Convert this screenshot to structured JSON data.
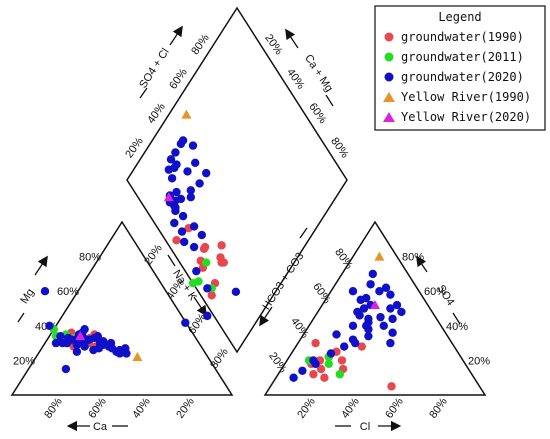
{
  "chart_data": {
    "type": "scatter",
    "title": "",
    "legend": {
      "title": "Legend",
      "placement": "top-right",
      "entries": [
        {
          "label": "groundwater(1990)",
          "marker": "circle",
          "color": "#e8474d"
        },
        {
          "label": "groundwater(2011)",
          "marker": "circle",
          "color": "#22dd22"
        },
        {
          "label": "groundwater(2020)",
          "marker": "circle",
          "color": "#1010c8"
        },
        {
          "label": "Yellow River(1990)",
          "marker": "triangle",
          "color": "#e8922a"
        },
        {
          "label": "Yellow River(2020)",
          "marker": "triangle",
          "color": "#dd22dd"
        }
      ]
    },
    "axes": {
      "cation_mg": {
        "label": "Mg",
        "ticks": [
          "20%",
          "40%",
          "60%",
          "80%"
        ]
      },
      "cation_ca": {
        "label": "Ca",
        "ticks": [
          "80%",
          "60%",
          "40%",
          "20%"
        ]
      },
      "cation_nak": {
        "label": "Na + K",
        "ticks": [
          "20%",
          "40%",
          "60%",
          "80%"
        ]
      },
      "anion_hco3": {
        "label": "HCO3 + CO3",
        "ticks": [
          "20%",
          "40%",
          "60%",
          "80%"
        ]
      },
      "anion_so4": {
        "label": "SO4",
        "ticks": [
          "20%",
          "40%",
          "60%",
          "80%"
        ]
      },
      "anion_cl": {
        "label": "Cl",
        "ticks": [
          "20%",
          "40%",
          "60%",
          "80%"
        ]
      },
      "diamond_so4cl": {
        "label": "SO4 + Cl",
        "ticks": [
          "20%",
          "40%",
          "60%",
          "80%"
        ]
      },
      "diamond_camg": {
        "label": "Ca + Mg",
        "ticks": [
          "20%",
          "40%",
          "60%",
          "80%"
        ]
      }
    },
    "series": [
      {
        "name": "groundwater(1990)",
        "series_index": 0,
        "points": [
          {
            "ca": 45,
            "mg": 35,
            "cl": 15,
            "so4": 20
          },
          {
            "ca": 48,
            "mg": 33,
            "cl": 18,
            "so4": 15
          },
          {
            "ca": 55,
            "mg": 30,
            "cl": 20,
            "so4": 25
          },
          {
            "ca": 52,
            "mg": 32,
            "cl": 25,
            "so4": 20
          },
          {
            "ca": 60,
            "mg": 30,
            "cl": 12,
            "so4": 18
          },
          {
            "ca": 58,
            "mg": 28,
            "cl": 30,
            "so4": 28
          },
          {
            "ca": 50,
            "mg": 30,
            "cl": 22,
            "so4": 10
          },
          {
            "ca": 62,
            "mg": 33,
            "cl": 16,
            "so4": 12
          },
          {
            "ca": 56,
            "mg": 34,
            "cl": 28,
            "so4": 15
          },
          {
            "ca": 63,
            "mg": 32,
            "cl": 55,
            "so4": 5
          },
          {
            "ca": 48,
            "mg": 28,
            "cl": 8,
            "so4": 30
          },
          {
            "ca": 55,
            "mg": 36,
            "cl": 18,
            "so4": 22
          }
        ]
      },
      {
        "name": "groundwater(2011)",
        "series_index": 1,
        "points": [
          {
            "ca": 63,
            "mg": 34,
            "cl": 20,
            "so4": 18
          },
          {
            "ca": 62,
            "mg": 38,
            "cl": 18,
            "so4": 22
          },
          {
            "ca": 55,
            "mg": 33,
            "cl": 28,
            "so4": 12
          },
          {
            "ca": 58,
            "mg": 35,
            "cl": 10,
            "so4": 20
          }
        ]
      },
      {
        "name": "groundwater(2020)",
        "series_index": 2,
        "points": [
          {
            "ca": 60,
            "mg": 30,
            "cl": 20,
            "so4": 40
          },
          {
            "ca": 58,
            "mg": 33,
            "cl": 18,
            "so4": 48
          },
          {
            "ca": 52,
            "mg": 35,
            "cl": 22,
            "so4": 52
          },
          {
            "ca": 55,
            "mg": 32,
            "cl": 25,
            "so4": 44
          },
          {
            "ca": 48,
            "mg": 38,
            "cl": 16,
            "so4": 55
          },
          {
            "ca": 50,
            "mg": 36,
            "cl": 20,
            "so4": 50
          },
          {
            "ca": 45,
            "mg": 30,
            "cl": 22,
            "so4": 60
          },
          {
            "ca": 42,
            "mg": 28,
            "cl": 28,
            "so4": 58
          },
          {
            "ca": 40,
            "mg": 25,
            "cl": 24,
            "so4": 62
          },
          {
            "ca": 38,
            "mg": 26,
            "cl": 18,
            "so4": 56
          },
          {
            "ca": 35,
            "mg": 27,
            "cl": 20,
            "so4": 46
          },
          {
            "ca": 40,
            "mg": 30,
            "cl": 30,
            "so4": 45
          },
          {
            "ca": 44,
            "mg": 29,
            "cl": 32,
            "so4": 50
          },
          {
            "ca": 47,
            "mg": 27,
            "cl": 26,
            "so4": 42
          },
          {
            "ca": 50,
            "mg": 26,
            "cl": 28,
            "so4": 38
          },
          {
            "ca": 53,
            "mg": 28,
            "cl": 34,
            "so4": 40
          },
          {
            "ca": 56,
            "mg": 29,
            "cl": 30,
            "so4": 34
          },
          {
            "ca": 62,
            "mg": 30,
            "cl": 26,
            "so4": 30
          },
          {
            "ca": 58,
            "mg": 25,
            "cl": 24,
            "so4": 32
          },
          {
            "ca": 65,
            "mg": 30,
            "cl": 12,
            "so4": 20
          },
          {
            "ca": 68,
            "mg": 15,
            "cl": 8,
            "so4": 10
          },
          {
            "ca": 63,
            "mg": 40,
            "cl": 10,
            "so4": 14
          },
          {
            "ca": 55,
            "mg": 60,
            "cl": 14,
            "so4": 18
          },
          {
            "ca": 46,
            "mg": 33,
            "cl": 36,
            "so4": 44
          },
          {
            "ca": 43,
            "mg": 31,
            "cl": 38,
            "so4": 48
          },
          {
            "ca": 39,
            "mg": 24,
            "cl": 34,
            "so4": 52
          },
          {
            "ca": 36,
            "mg": 24,
            "cl": 16,
            "so4": 64
          },
          {
            "ca": 52,
            "mg": 30,
            "cl": 15,
            "so4": 35
          },
          {
            "ca": 57,
            "mg": 32,
            "cl": 22,
            "so4": 28
          },
          {
            "ca": 61,
            "mg": 34,
            "cl": 18,
            "so4": 24
          },
          {
            "ca": 49,
            "mg": 32,
            "cl": 10,
            "so4": 60
          },
          {
            "ca": 44,
            "mg": 34,
            "cl": 14,
            "so4": 70
          },
          {
            "ca": 54,
            "mg": 31,
            "cl": 40,
            "so4": 36
          },
          {
            "ca": 51,
            "mg": 33,
            "cl": 42,
            "so4": 30
          },
          {
            "ca": 41,
            "mg": 27,
            "cl": 26,
            "so4": 40
          }
        ]
      },
      {
        "name": "Yellow River(1990)",
        "series_index": 3,
        "points": [
          {
            "ca": 32,
            "mg": 22,
            "cl": 12,
            "so4": 80
          }
        ]
      },
      {
        "name": "Yellow River(2020)",
        "series_index": 4,
        "points": [
          {
            "ca": 52,
            "mg": 34,
            "cl": 24,
            "so4": 52
          }
        ]
      }
    ]
  }
}
